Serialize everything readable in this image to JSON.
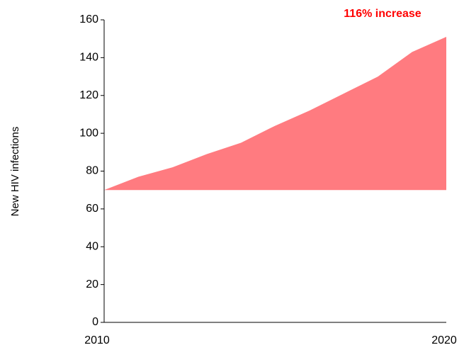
{
  "chart_data": {
    "type": "area",
    "title": "",
    "xlabel": "",
    "ylabel": "New HIV infections",
    "x": [
      2010,
      2011,
      2012,
      2013,
      2014,
      2015,
      2016,
      2017,
      2018,
      2019,
      2020
    ],
    "values": [
      70,
      77,
      82,
      89,
      95,
      104,
      112,
      121,
      130,
      143,
      151
    ],
    "baseline": 70,
    "xlim": [
      2010,
      2020
    ],
    "ylim": [
      0,
      160
    ],
    "x_tick_labels": [
      "2010",
      "2020"
    ],
    "y_ticks": [
      0,
      20,
      40,
      60,
      80,
      100,
      120,
      140,
      160
    ],
    "y_tick_labels": [
      "0",
      "20",
      "40",
      "60",
      "80",
      "100",
      "120",
      "140",
      "160"
    ],
    "grid": false,
    "legend": "none",
    "annotation": {
      "text": "116% increase",
      "color": "#ff0000",
      "position": "top-right"
    },
    "colors": {
      "area": "#ff7b80",
      "axis": "#000000"
    }
  }
}
